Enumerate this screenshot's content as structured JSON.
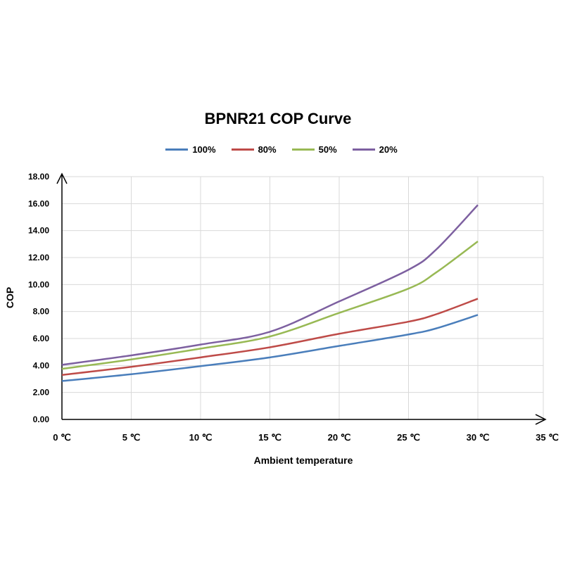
{
  "chart_data": {
    "type": "line",
    "title": "BPNR21 COP Curve",
    "xlabel": "Ambient temperature",
    "ylabel": "COP",
    "x": [
      0,
      5,
      10,
      15,
      20,
      25,
      27,
      30
    ],
    "xlim": [
      0,
      35
    ],
    "ylim": [
      0,
      18
    ],
    "x_tick_labels": [
      "0 ℃",
      "5 ℃",
      "10 ℃",
      "15 ℃",
      "20 ℃",
      "25 ℃",
      "30 ℃",
      "35 ℃"
    ],
    "y_tick_labels": [
      "0.00",
      "2.00",
      "4.00",
      "6.00",
      "8.00",
      "10.00",
      "12.00",
      "14.00",
      "16.00",
      "18.00"
    ],
    "grid": true,
    "legend_position": "top-center",
    "series": [
      {
        "name": "100%",
        "color": "#4a7ebb",
        "values": [
          2.85,
          3.35,
          3.95,
          4.6,
          5.45,
          6.3,
          6.75,
          7.75
        ]
      },
      {
        "name": "80%",
        "color": "#be4b48",
        "values": [
          3.3,
          3.9,
          4.6,
          5.35,
          6.35,
          7.25,
          7.8,
          8.95
        ]
      },
      {
        "name": "50%",
        "color": "#98b954",
        "values": [
          3.75,
          4.45,
          5.25,
          6.15,
          7.9,
          9.7,
          10.9,
          13.2
        ]
      },
      {
        "name": "20%",
        "color": "#7d60a0",
        "values": [
          4.05,
          4.75,
          5.55,
          6.5,
          8.75,
          11.1,
          12.6,
          15.9
        ]
      }
    ]
  }
}
